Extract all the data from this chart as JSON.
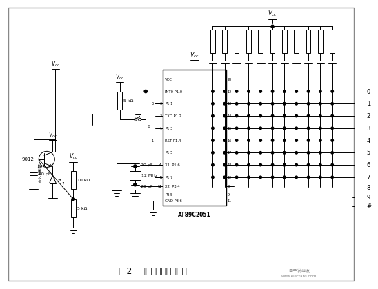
{
  "bg_color": "#ffffff",
  "caption": "图 2   发射模块电路原理图",
  "watermark1": "电子发烧友",
  "watermark2": "www.elecfans.com",
  "ic_label": "AT89C2051",
  "ic_pins_left": [
    "VCC",
    "INT0 P1.0",
    "P1.1",
    "TXD P1.2",
    "P1.3",
    "RST P1.4",
    "P1.5",
    "X1  P1.6",
    "P1.7",
    "X2  P3.4",
    "P3.5",
    "GND P3.6"
  ],
  "ic_pins_right_nums": [
    "20",
    "12",
    "13",
    "14",
    "15",
    "16",
    "17",
    "18",
    "19",
    "8",
    "9",
    "11"
  ],
  "ic_pins_left_nums": [
    "",
    "",
    "",
    "3",
    "",
    "1",
    "",
    "",
    "4",
    "5",
    "10",
    ""
  ],
  "key_labels": [
    "0",
    "1",
    "2",
    "3",
    "4",
    "5",
    "6",
    "7",
    "8",
    "9",
    "#"
  ],
  "transistor_label": "9012",
  "res1_label": "5 kΩ",
  "res2_label": "10 kΩ",
  "res3_label": "5 kΩ",
  "res4_label": "5 kΩ",
  "cap1_label": "20 pF",
  "cap2_label": "20 pF",
  "cap3_label": "20 pF",
  "xtal_label": "12 MHz",
  "ir_label": "红外发射管"
}
